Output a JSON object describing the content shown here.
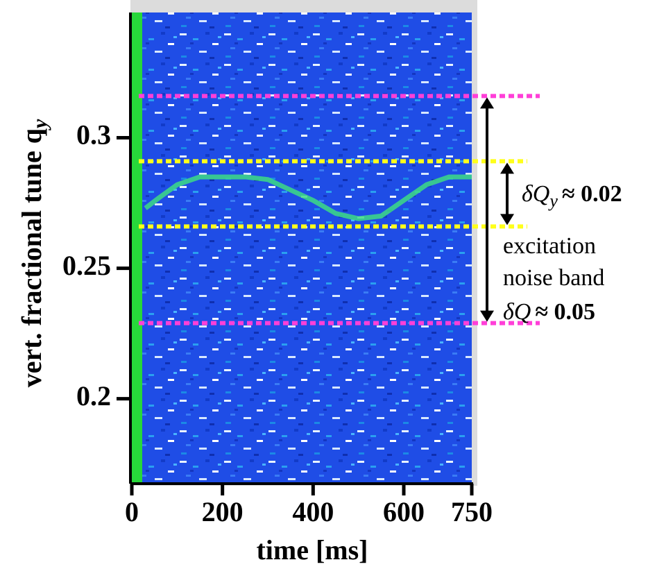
{
  "chart_data": {
    "type": "line",
    "xlabel": "time [ms]",
    "ylabel": {
      "text": "vert. fractional tune q",
      "sub": "y"
    },
    "xlim": [
      0,
      750
    ],
    "xticks": [
      0,
      200,
      400,
      600,
      750
    ],
    "ylim": [
      0.168,
      0.348
    ],
    "yticks": [
      0.2,
      0.25,
      0.3
    ],
    "x": [
      30,
      60,
      100,
      150,
      200,
      250,
      300,
      350,
      400,
      450,
      500,
      550,
      600,
      650,
      700,
      750
    ],
    "series": [
      {
        "color": "#3ddc84",
        "values": [
          0.273,
          0.277,
          0.282,
          0.285,
          0.285,
          0.285,
          0.284,
          0.28,
          0.276,
          0.271,
          0.269,
          0.27,
          0.276,
          0.282,
          0.285,
          0.285
        ]
      }
    ],
    "hlines": [
      {
        "value": 0.316,
        "color": "#ff3fd8"
      },
      {
        "value": 0.291,
        "color": "#ffff1a"
      },
      {
        "value": 0.266,
        "color": "#ffff1a"
      },
      {
        "value": 0.229,
        "color": "#ff3fd8"
      }
    ],
    "annotations": [
      {
        "text": "δQ",
        "sub": "y",
        "after": "≈ 0.02"
      },
      {
        "text": "excitation"
      },
      {
        "text": "noise band"
      },
      {
        "text": "δQ",
        "after": "≈ 0.05"
      }
    ]
  }
}
